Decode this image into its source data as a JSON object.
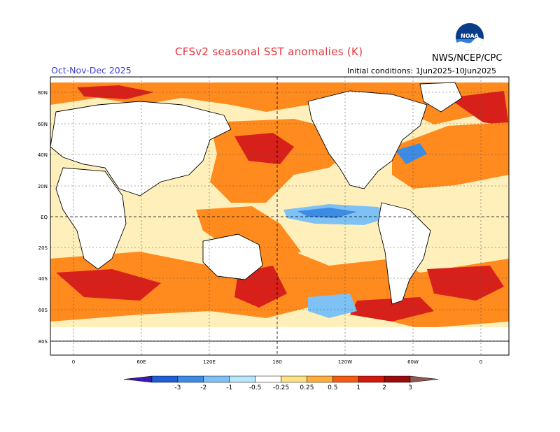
{
  "header": {
    "title": "CFSv2 seasonal SST anomalies (K)",
    "season": "Oct-Nov-Dec 2025",
    "initial_conditions": "Initial conditions: 1Jun2025-10Jun2025",
    "agency": "NWS/NCEP/CPC",
    "logo_text": "NOAA"
  },
  "map": {
    "lat_labels": [
      "80N",
      "60N",
      "40N",
      "20N",
      "EQ",
      "20S",
      "40S",
      "60S",
      "80S"
    ],
    "lon_labels": [
      "0",
      "60E",
      "120E",
      "180",
      "120W",
      "60W",
      "0"
    ],
    "colors": {
      "land": "#ffffff",
      "coast": "#000000",
      "warm": "#ff8a1e",
      "very_warm": "#d8201a",
      "cool": "#4aa0f0"
    }
  },
  "legend": {
    "ticks": [
      "-3",
      "-2",
      "-1",
      "-0.5",
      "-0.25",
      "0.25",
      "0.5",
      "1",
      "2",
      "3"
    ],
    "colors": [
      "#3a1ab0",
      "#1e5fd6",
      "#3c8ce6",
      "#7ec2f5",
      "#b8e6fa",
      "#ffffff",
      "#ffe383",
      "#ffae3a",
      "#f55a10",
      "#d4180e",
      "#9c0a0a",
      "#8c5a50"
    ]
  }
}
